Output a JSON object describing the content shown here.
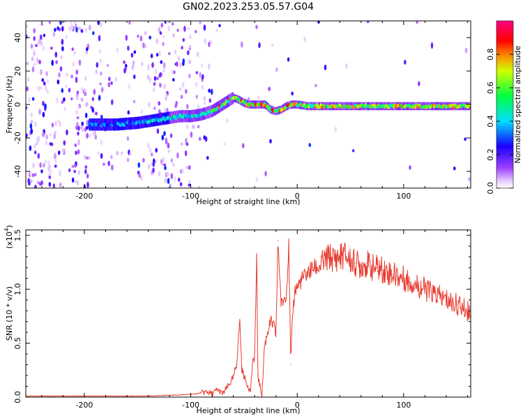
{
  "figure_title": "GN02.2023.253.05.57.G04",
  "chart_data": [
    {
      "type": "heatmap",
      "title": "GN02.2023.253.05.57.G04",
      "xlabel": "Height of straight line (km)",
      "ylabel": "Frequency (Hz)",
      "xlim": [
        -255,
        163
      ],
      "ylim": [
        -50,
        50
      ],
      "x_ticks": [
        -200,
        -100,
        0,
        100
      ],
      "y_ticks": [
        -40,
        -20,
        0,
        20,
        40
      ],
      "x_tick_labels": [
        "-200",
        "-100",
        "0",
        "100"
      ],
      "y_tick_labels": [
        "-40",
        "-20",
        "0",
        "20",
        "40"
      ],
      "ridge": {
        "x": [
          -190,
          -170,
          -150,
          -130,
          -110,
          -100,
          -90,
          -80,
          -70,
          -60,
          -55,
          -50,
          -45,
          -40,
          -35,
          -30,
          -25,
          -20,
          -15,
          -10,
          -5,
          0,
          10,
          20,
          40,
          60,
          80,
          100,
          120,
          140,
          160
        ],
        "frequency": [
          -12,
          -12,
          -11,
          -9,
          -7,
          -7,
          -6,
          -4,
          0,
          4,
          3,
          1,
          0,
          0,
          0,
          0,
          -3,
          -4,
          -3,
          -1,
          0,
          0,
          -1,
          -1,
          -1,
          -1,
          -1,
          -1,
          -1,
          -1,
          -1
        ]
      },
      "colorbar": {
        "label": "Normalized spectral amplitude",
        "range": [
          0.0,
          1.0
        ],
        "ticks": [
          0.0,
          0.2,
          0.4,
          0.6,
          0.8
        ],
        "tick_labels": [
          "0.0",
          "0.2",
          "0.4",
          "0.6",
          "0.8"
        ],
        "colors": [
          "#ffffff",
          "#a040ff",
          "#0000ff",
          "#00ffff",
          "#00ff00",
          "#ffff00",
          "#ff0000",
          "#ff0080"
        ]
      }
    },
    {
      "type": "line",
      "xlabel": "Height of straight line (km)",
      "ylabel": "SNR (10 * v/v)",
      "y_multiplier_label": "(x10",
      "y_multiplier_exp": "4",
      "xlim": [
        -255,
        163
      ],
      "ylim": [
        0,
        1.55
      ],
      "x_ticks": [
        -200,
        -100,
        0,
        100
      ],
      "y_ticks": [
        0.0,
        0.5,
        1.0,
        1.5
      ],
      "x_tick_labels": [
        "-200",
        "-100",
        "0",
        "100"
      ],
      "y_tick_labels": [
        "0.0",
        "0.5",
        "1.0",
        "1.5"
      ],
      "line_color": "#e83a2e",
      "series": [
        {
          "x": [
            -255,
            -220,
            -180,
            -140,
            -110,
            -95,
            -85,
            -80,
            -75,
            -70,
            -65,
            -60,
            -57,
            -54,
            -52,
            -50,
            -48,
            -46,
            -44,
            -42,
            -40,
            -38,
            -37,
            -35,
            -33,
            -31,
            -30,
            -28,
            -25,
            -22,
            -20,
            -18,
            -15,
            -12,
            -10,
            -8,
            -6,
            -5,
            -4,
            -3,
            -2,
            0,
            5,
            10,
            15,
            20,
            25,
            30,
            35,
            40,
            45,
            50,
            55,
            60,
            65,
            70,
            75,
            80,
            85,
            90,
            95,
            100,
            110,
            120,
            130,
            140,
            150,
            160
          ],
          "values": [
            0.01,
            0.01,
            0.01,
            0.01,
            0.02,
            0.03,
            0.05,
            0.03,
            0.07,
            0.03,
            0.1,
            0.18,
            0.3,
            0.72,
            0.25,
            0.2,
            0.14,
            0.1,
            0.05,
            0.3,
            0.38,
            1.31,
            0.2,
            0.1,
            0.02,
            0.45,
            0.5,
            0.6,
            0.7,
            0.66,
            0.58,
            1.45,
            0.85,
            0.92,
            0.98,
            1.41,
            0.3,
            0.6,
            0.82,
            0.9,
            1.0,
            1.02,
            1.1,
            1.15,
            1.2,
            1.2,
            1.25,
            1.3,
            1.28,
            1.3,
            1.32,
            1.26,
            1.24,
            1.22,
            1.24,
            1.2,
            1.2,
            1.18,
            1.16,
            1.14,
            1.12,
            1.1,
            1.05,
            1.0,
            0.95,
            0.9,
            0.86,
            0.8
          ]
        }
      ]
    }
  ]
}
